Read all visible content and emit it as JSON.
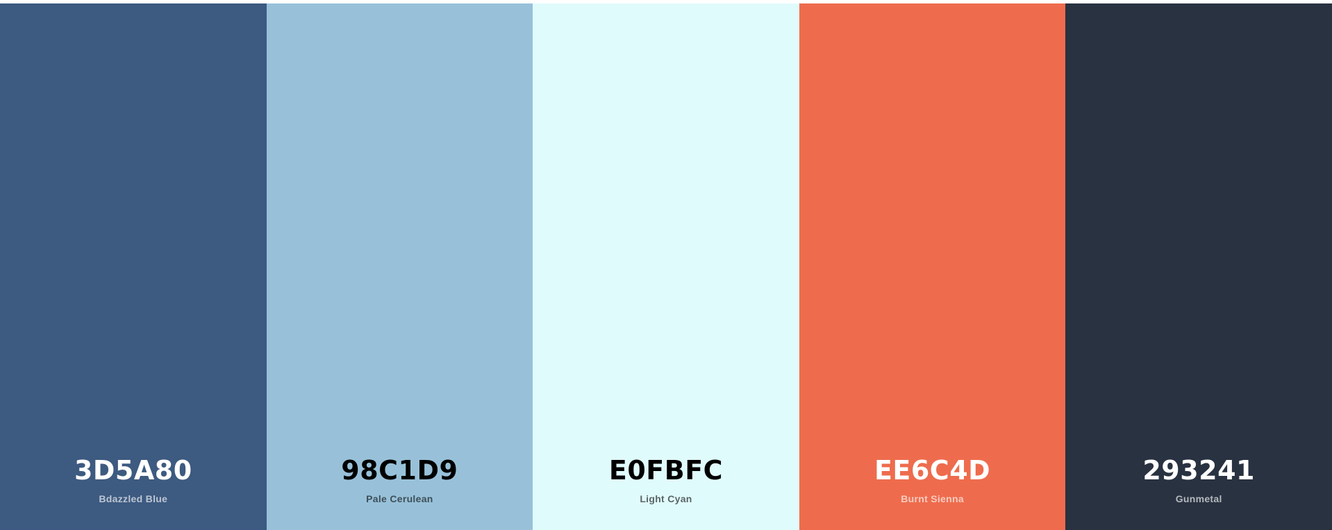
{
  "palette": {
    "colors": [
      {
        "hex": "3D5A80",
        "name": "Bdazzled Blue",
        "color": "#3D5A80",
        "text_tone": "light"
      },
      {
        "hex": "98C1D9",
        "name": "Pale Cerulean",
        "color": "#98C1D9",
        "text_tone": "dark"
      },
      {
        "hex": "E0FBFC",
        "name": "Light Cyan",
        "color": "#E0FBFC",
        "text_tone": "dark"
      },
      {
        "hex": "EE6C4D",
        "name": "Burnt Sienna",
        "color": "#EE6C4D",
        "text_tone": "light"
      },
      {
        "hex": "293241",
        "name": "Gunmetal",
        "color": "#293241",
        "text_tone": "light"
      }
    ]
  }
}
